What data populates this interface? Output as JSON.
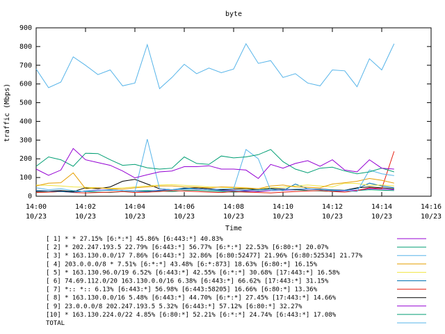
{
  "chart_data": {
    "type": "line",
    "title": "byte",
    "xlabel": "Time",
    "ylabel": "traffic (Mbps)",
    "ylim": [
      0,
      900
    ],
    "yticks": [
      "0",
      "100",
      "200",
      "300",
      "400",
      "500",
      "600",
      "700",
      "800",
      "900"
    ],
    "xlim": [
      "14:00 10/23",
      "14:16 10/23"
    ],
    "xticks": [
      {
        "time": "14:00",
        "date": "10/23"
      },
      {
        "time": "14:02",
        "date": "10/23"
      },
      {
        "time": "14:04",
        "date": "10/23"
      },
      {
        "time": "14:06",
        "date": "10/23"
      },
      {
        "time": "14:08",
        "date": "10/23"
      },
      {
        "time": "14:10",
        "date": "10/23"
      },
      {
        "time": "14:12",
        "date": "10/23"
      },
      {
        "time": "14:14",
        "date": "10/23"
      },
      {
        "time": "14:16",
        "date": "10/23"
      }
    ],
    "grid": false,
    "legend_position": "bottom",
    "x_minutes": [
      0,
      0.5,
      1,
      1.5,
      2,
      2.5,
      3,
      3.5,
      4,
      4.5,
      5,
      5.5,
      6,
      6.5,
      7,
      7.5,
      8,
      8.5,
      9,
      9.5,
      10,
      10.5,
      11,
      11.5,
      12,
      12.5,
      13,
      13.5,
      14,
      14.5
    ],
    "series": [
      {
        "name": "[ 1] * * 27.15%  [6:*:*] 45.86% [6:443:*] 40.83%",
        "color": "#9400d3",
        "values": [
          145,
          112,
          140,
          255,
          195,
          180,
          165,
          135,
          98,
          115,
          130,
          135,
          158,
          158,
          163,
          145,
          145,
          140,
          95,
          170,
          150,
          175,
          190,
          160,
          195,
          140,
          130,
          195,
          150,
          145
        ]
      },
      {
        "name": "[ 2] * 202.247.193.5 22.79%  [6:443:*] 56.77% [6:*:*] 22.53% [6:80:*] 20.07%",
        "color": "#009e73",
        "values": [
          160,
          210,
          195,
          160,
          230,
          228,
          195,
          165,
          170,
          152,
          145,
          150,
          210,
          175,
          170,
          215,
          205,
          210,
          222,
          250,
          185,
          145,
          125,
          150,
          155,
          135,
          120,
          130,
          150,
          130
        ]
      },
      {
        "name": "[ 3] * 163.130.0.0/17 7.86%  [6:443:*] 32.86% [6:80:52477] 21.96% [6:80:52534] 21.77%",
        "color": "#56b4e9",
        "values": [
          45,
          35,
          40,
          30,
          25,
          30,
          35,
          30,
          25,
          305,
          40,
          35,
          45,
          40,
          35,
          38,
          40,
          250,
          200,
          30,
          35,
          38,
          40,
          36,
          34,
          30,
          25,
          140,
          120,
          110
        ]
      },
      {
        "name": "[ 4] 203.0.0.0/8 * 7.51%  [6:*:*] 43.48% [6:*:873] 18.63% [6:80:*] 16.15%",
        "color": "#e69f00",
        "values": [
          55,
          70,
          72,
          125,
          40,
          45,
          40,
          38,
          45,
          50,
          55,
          55,
          50,
          48,
          45,
          50,
          48,
          45,
          40,
          55,
          60,
          50,
          48,
          45,
          65,
          72,
          80,
          95,
          85,
          70
        ]
      },
      {
        "name": "[ 5] * 163.130.96.0/19 6.52%  [6:443:*] 42.55% [6:*:*] 30.68% [17:443:*] 16.58%",
        "color": "#f0e442",
        "values": [
          60,
          58,
          55,
          50,
          48,
          45,
          42,
          45,
          50,
          55,
          60,
          62,
          58,
          55,
          50,
          48,
          45,
          42,
          40,
          45,
          48,
          55,
          60,
          55,
          50,
          70,
          68,
          58,
          60,
          55
        ]
      },
      {
        "name": "[ 6] 74.69.112.0/20 163.130.0.0/16 6.38%  [6:443:*] 66.62% [17:443:*] 31.15%",
        "color": "#0072b2",
        "values": [
          30,
          28,
          25,
          22,
          28,
          30,
          32,
          30,
          28,
          25,
          30,
          35,
          38,
          40,
          35,
          30,
          28,
          32,
          35,
          38,
          30,
          65,
          40,
          35,
          30,
          32,
          40,
          70,
          55,
          45
        ]
      },
      {
        "name": "[ 7] *:: *:: 6.13%  [6:443:*] 56.98% [6:443:58205] 16.66% [6:80:*] 13.36%",
        "color": "#e51e10",
        "values": [
          20,
          22,
          25,
          20,
          18,
          20,
          22,
          25,
          20,
          22,
          25,
          30,
          28,
          25,
          22,
          20,
          25,
          22,
          20,
          18,
          22,
          25,
          28,
          30,
          25,
          22,
          30,
          45,
          40,
          240
        ]
      },
      {
        "name": "[ 8] * 163.130.0.0/16 5.48%  [6:443:*] 44.70% [6:*:*] 27.45% [17:443:*] 14.66%",
        "color": "#000000",
        "values": [
          25,
          28,
          30,
          25,
          45,
          40,
          50,
          80,
          90,
          65,
          40,
          35,
          42,
          45,
          40,
          35,
          38,
          40,
          35,
          42,
          38,
          35,
          40,
          38,
          35,
          32,
          45,
          50,
          45,
          40
        ]
      },
      {
        "name": "[ 9] 23.0.0.0/8 202.247.193.5 5.32%  [6:443:*] 57.12% [6:80:*] 32.27%",
        "color": "#9400d3",
        "values": [
          30,
          28,
          25,
          22,
          28,
          32,
          35,
          30,
          28,
          25,
          32,
          35,
          40,
          38,
          35,
          32,
          30,
          28,
          25,
          30,
          32,
          35,
          38,
          35,
          30,
          28,
          32,
          40,
          38,
          35
        ]
      },
      {
        "name": "[10] * 163.130.224.0/22 4.85%  [6:80:*] 52.21% [6:*:*] 24.74% [6:443:*] 17.08%",
        "color": "#009e73",
        "values": [
          20,
          22,
          25,
          28,
          25,
          22,
          20,
          25,
          28,
          30,
          28,
          25,
          30,
          32,
          28,
          25,
          22,
          25,
          28,
          30,
          32,
          35,
          30,
          28,
          25,
          28,
          30,
          35,
          32,
          30
        ]
      },
      {
        "name": "TOTAL",
        "color": "#56b4e9",
        "values": [
          680,
          580,
          610,
          745,
          700,
          650,
          675,
          590,
          605,
          810,
          575,
          635,
          705,
          655,
          685,
          660,
          680,
          815,
          710,
          725,
          635,
          655,
          605,
          590,
          675,
          670,
          585,
          735,
          675,
          815
        ]
      }
    ]
  }
}
